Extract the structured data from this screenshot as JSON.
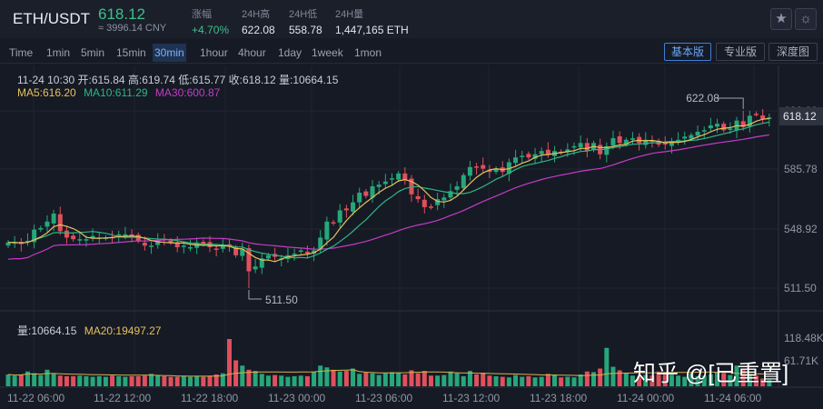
{
  "header": {
    "pair": "ETH/USDT",
    "last_price": "618.12",
    "cny": "≈ 3996.14 CNY",
    "stats": [
      {
        "label": "涨幅",
        "value": "+4.70%",
        "up": true
      },
      {
        "label": "24H高",
        "value": "622.08",
        "up": false
      },
      {
        "label": "24H低",
        "value": "558.78",
        "up": false
      },
      {
        "label": "24H量",
        "value": "1,447,165 ETH",
        "up": false
      }
    ]
  },
  "toolbar": {
    "timeframes": [
      "Time",
      "1min",
      "5min",
      "15min",
      "30min",
      "1hour",
      "4hour",
      "1day",
      "1week",
      "1mon"
    ],
    "active_timeframe": "30min",
    "views": [
      "基本版",
      "专业版",
      "深度图"
    ],
    "active_view": "基本版"
  },
  "info": {
    "ohlc": "11-24 10:30   开:615.84  高:619.74  低:615.77  收:618.12  量:10664.15",
    "ma5": "MA5:616.20",
    "ma10": "MA10:611.29",
    "ma30": "MA30:600.87",
    "vol": "量:10664.15",
    "ma20": "MA20:19497.27"
  },
  "watermark": "知乎 @[已重置]",
  "colors": {
    "up": "#26a77a",
    "down": "#e0505d",
    "ma5": "#e7c15c",
    "ma10": "#2fb583",
    "ma30": "#c43cc6",
    "volma": "#d6b34c"
  },
  "chart_data": {
    "type": "candlestick",
    "price_ticks": [
      "622.03",
      "585.78",
      "548.92",
      "511.50"
    ],
    "current_price_label": "618.12",
    "high_annotation": "622.08",
    "low_annotation": "511.50",
    "volume_ticks": [
      "118.48K",
      "61.71K"
    ],
    "time_labels": [
      "11-22 06:00",
      "11-22 12:00",
      "11-22 18:00",
      "11-23 00:00",
      "11-23 06:00",
      "11-23 12:00",
      "11-23 18:00",
      "11-24 00:00",
      "11-24 06:00"
    ],
    "closes": [
      540,
      540,
      539,
      541,
      548,
      549,
      553,
      558,
      547,
      543,
      542,
      542,
      542,
      544,
      543,
      543,
      543,
      545,
      545,
      544,
      541,
      538,
      538,
      541,
      542,
      540,
      537,
      538,
      537,
      540,
      539,
      537,
      536,
      538,
      538,
      532,
      536,
      522,
      525,
      530,
      532,
      531,
      530,
      532,
      533,
      535,
      533,
      535,
      543,
      553,
      552,
      560,
      560,
      565,
      571,
      569,
      575,
      576,
      578,
      580,
      583,
      579,
      570,
      567,
      562,
      562,
      567,
      568,
      572,
      575,
      582,
      587,
      587,
      586,
      584,
      586,
      584,
      590,
      593,
      594,
      593,
      595,
      597,
      595,
      597,
      596,
      598,
      600,
      602,
      597,
      602,
      595,
      600,
      605,
      602,
      604,
      605,
      602,
      604,
      603,
      601,
      601,
      603,
      604,
      606,
      607,
      609,
      610,
      613,
      614,
      610,
      611,
      616,
      612,
      619,
      620,
      617,
      618
    ],
    "volumes": [
      20000,
      18000,
      20000,
      25000,
      22000,
      19000,
      28000,
      21000,
      18000,
      17000,
      17000,
      18000,
      17000,
      16000,
      17000,
      16000,
      18000,
      17000,
      16000,
      17000,
      17000,
      18000,
      21000,
      18000,
      17000,
      16000,
      16000,
      17000,
      16000,
      17000,
      16000,
      18000,
      20000,
      22000,
      80000,
      44000,
      35000,
      28000,
      26000,
      21000,
      18000,
      19000,
      18000,
      16000,
      17000,
      18000,
      17000,
      24000,
      35000,
      32000,
      28000,
      25000,
      26000,
      30000,
      21000,
      23000,
      22000,
      19000,
      22000,
      24000,
      23000,
      20000,
      27000,
      22000,
      26000,
      18000,
      18000,
      19000,
      25000,
      22000,
      17000,
      26000,
      20000,
      23000,
      18000,
      17000,
      16000,
      15000,
      19000,
      16000,
      17000,
      15000,
      16000,
      21000,
      20000,
      15000,
      16000,
      15000,
      20000,
      25000,
      24000,
      30000,
      65000,
      33000,
      27000,
      22000,
      18000,
      17000,
      19000,
      18000,
      25000,
      24000,
      21000,
      18000,
      16000,
      22000,
      17000,
      18000,
      20000,
      24000,
      23000,
      19000,
      35000,
      28000,
      22000,
      18000,
      13000,
      11000
    ]
  }
}
